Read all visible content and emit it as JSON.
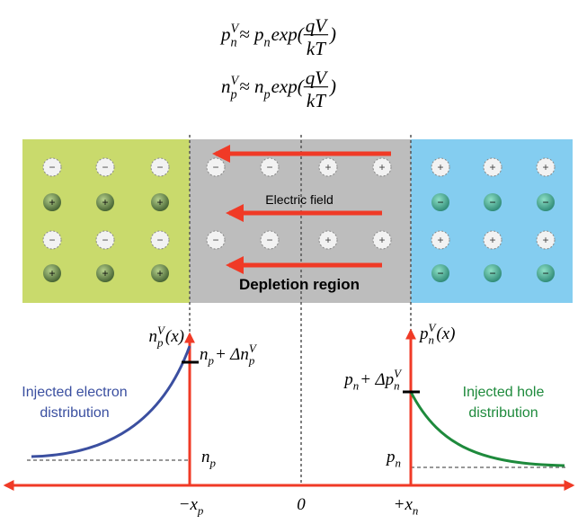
{
  "equations": [
    [
      {
        "text": "p",
        "sub": "n",
        "sup": "V"
      },
      {
        "text": " ≈ p",
        "sub": "n"
      },
      {
        "text": " exp("
      },
      {
        "frac": [
          "qV",
          "kT"
        ]
      },
      {
        "text": ")"
      }
    ],
    [
      {
        "text": "n",
        "sub": "p",
        "sup": "V"
      },
      {
        "text": " ≈ n",
        "sub": "p"
      },
      {
        "text": " exp("
      },
      {
        "frac": [
          "qV",
          "kT"
        ]
      },
      {
        "text": ")"
      }
    ]
  ],
  "regions": {
    "p": {
      "rows": [
        [
          "−",
          "−",
          "−"
        ],
        [
          "+",
          "+",
          "+"
        ],
        [
          "−",
          "−",
          "−"
        ],
        [
          "+",
          "+",
          "+"
        ]
      ]
    },
    "depletion": {
      "rows": [
        [
          "−",
          "−",
          "+",
          "+"
        ],
        [
          "−",
          "−",
          "+",
          "+"
        ]
      ]
    },
    "n": {
      "rows": [
        [
          "+",
          "+",
          "+"
        ],
        [
          "−",
          "−",
          "−"
        ],
        [
          "+",
          "+",
          "+"
        ],
        [
          "−",
          "−",
          "−"
        ]
      ]
    }
  },
  "electric_field": "Electric field",
  "depletion_label": "Depletion region",
  "left_axis_label": [
    {
      "text": "n",
      "sub": "p",
      "sup": "V"
    },
    {
      "text": "(x)"
    }
  ],
  "right_axis_label": [
    {
      "text": "p",
      "sub": "n",
      "sup": "V"
    },
    {
      "text": "(x)"
    }
  ],
  "left_peak_label": [
    {
      "text": "n",
      "sub": "p"
    },
    {
      "text": " + Δn",
      "sub": "p",
      "sup": "V"
    }
  ],
  "right_peak_label": [
    {
      "text": "p",
      "sub": "n"
    },
    {
      "text": " + Δp",
      "sub": "n",
      "sup": "V"
    }
  ],
  "left_base_label": [
    {
      "text": "n",
      "sub": "p"
    }
  ],
  "right_base_label": [
    {
      "text": "p",
      "sub": "n"
    }
  ],
  "left_text": [
    "Injected electron",
    "distribution"
  ],
  "right_text": [
    "Injected hole",
    "distribution"
  ],
  "x_labels": [
    [
      {
        "text": "−x",
        "sub": "p"
      }
    ],
    [
      {
        "text": "0"
      }
    ],
    [
      {
        "text": "+x",
        "sub": "n"
      }
    ]
  ]
}
